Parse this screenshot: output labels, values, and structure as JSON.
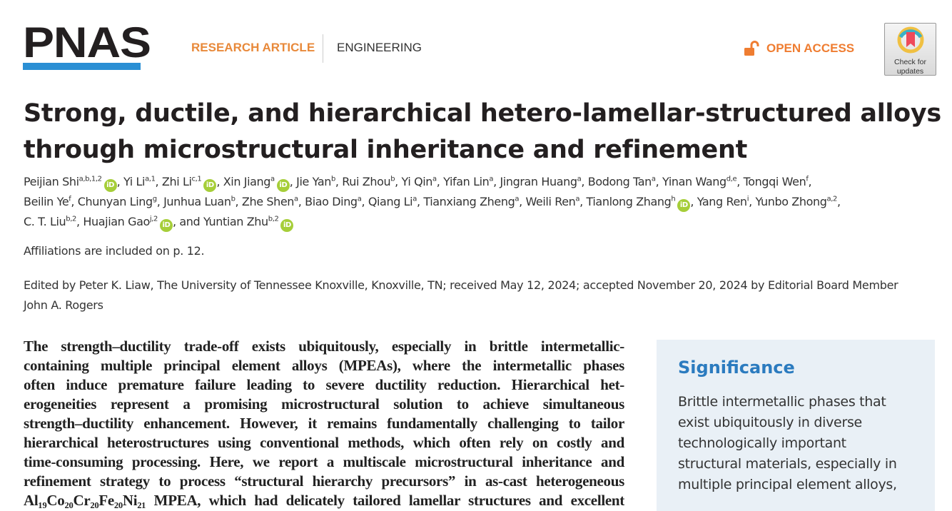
{
  "header": {
    "logo": "PNAS",
    "article_type": "RESEARCH ARTICLE",
    "subject": "ENGINEERING",
    "open_access": "OPEN ACCESS",
    "check_updates": [
      "Check for",
      "updates"
    ],
    "colors": {
      "logo_bar": "#2a8fd4",
      "article_type": "#e8893a",
      "open_access": "#ef7d31",
      "orcid": "#a6ce39",
      "significance_heading": "#2b7bbf",
      "significance_bg": "#e9f0f6"
    }
  },
  "title": "Strong, ductile, and hierarchical hetero-lamellar-structured alloys through microstructural inheritance and refinement",
  "authors": [
    {
      "name": "Peijian Shi",
      "sup": "a,b,1,2",
      "orcid": true
    },
    {
      "name": "Yi Li",
      "sup": "a,1",
      "orcid": false
    },
    {
      "name": "Zhi Li",
      "sup": "c,1",
      "orcid": true
    },
    {
      "name": "Xin Jiang",
      "sup": "a",
      "orcid": true
    },
    {
      "name": "Jie Yan",
      "sup": "b",
      "orcid": false
    },
    {
      "name": "Rui Zhou",
      "sup": "b",
      "orcid": false
    },
    {
      "name": "Yi Qin",
      "sup": "a",
      "orcid": false
    },
    {
      "name": "Yifan Lin",
      "sup": "a",
      "orcid": false
    },
    {
      "name": "Jingran Huang",
      "sup": "a",
      "orcid": false
    },
    {
      "name": "Bodong Tan",
      "sup": "a",
      "orcid": false
    },
    {
      "name": "Yinan Wang",
      "sup": "d,e",
      "orcid": false
    },
    {
      "name": "Tongqi Wen",
      "sup": "f",
      "orcid": false,
      "break": true
    },
    {
      "name": "Beilin Ye",
      "sup": "f",
      "orcid": false
    },
    {
      "name": "Chunyan Ling",
      "sup": "g",
      "orcid": false
    },
    {
      "name": "Junhua Luan",
      "sup": "b",
      "orcid": false
    },
    {
      "name": "Zhe Shen",
      "sup": "a",
      "orcid": false
    },
    {
      "name": "Biao Ding",
      "sup": "a",
      "orcid": false
    },
    {
      "name": "Qiang Li",
      "sup": "a",
      "orcid": false
    },
    {
      "name": "Tianxiang Zheng",
      "sup": "a",
      "orcid": false
    },
    {
      "name": "Weili Ren",
      "sup": "a",
      "orcid": false
    },
    {
      "name": "Tianlong Zhang",
      "sup": "h",
      "orcid": true
    },
    {
      "name": "Yang Ren",
      "sup": "i",
      "orcid": false
    },
    {
      "name": "Yunbo Zhong",
      "sup": "a,2",
      "orcid": false,
      "break": true
    },
    {
      "name": "C. T. Liu",
      "sup": "b,2",
      "orcid": false
    },
    {
      "name": "Huajian Gao",
      "sup": "j,2",
      "orcid": true
    },
    {
      "name": "Yuntian Zhu",
      "sup": "b,2",
      "orcid": true,
      "prefix": "and "
    }
  ],
  "affiliations_note": "Affiliations are included on p. 12.",
  "edited_by": "Edited by Peter K. Liaw, The University of Tennessee Knoxville, Knoxville, TN; received May 12, 2024; accepted November 20, 2024 by Editorial Board Member John A. Rogers",
  "abstract_lines": [
    "The strength–ductility trade-off exists ubiquitously, especially in brittle intermetallic-",
    "containing multiple principal element alloys (MPEAs), where the intermetallic phases",
    "often induce premature failure leading to severe ductility reduction. Hierarchical het-",
    "erogeneities represent a promising microstructural solution to achieve simultaneous",
    "strength–ductility enhancement. However, it remains fundamentally challenging to tailor",
    "hierarchical heterostructures using conventional methods, which often rely on costly and",
    "time-consuming processing. Here, we report a multiscale microstructural inheritance and",
    "refinement strategy to process “structural hierarchy precursors” in as-cast heterogeneous",
    "Al₁₉Co₂₀Cr₂₀Fe₂₀Ni₂₁ MPEA, which had delicately tailored lamellar structures and excellent"
  ],
  "significance": {
    "heading": "Significance",
    "lines": [
      "Brittle intermetallic phases that",
      "exist ubiquitously in diverse",
      "technologically important",
      "structural materials, especially in",
      "multiple principal element alloys,"
    ]
  }
}
